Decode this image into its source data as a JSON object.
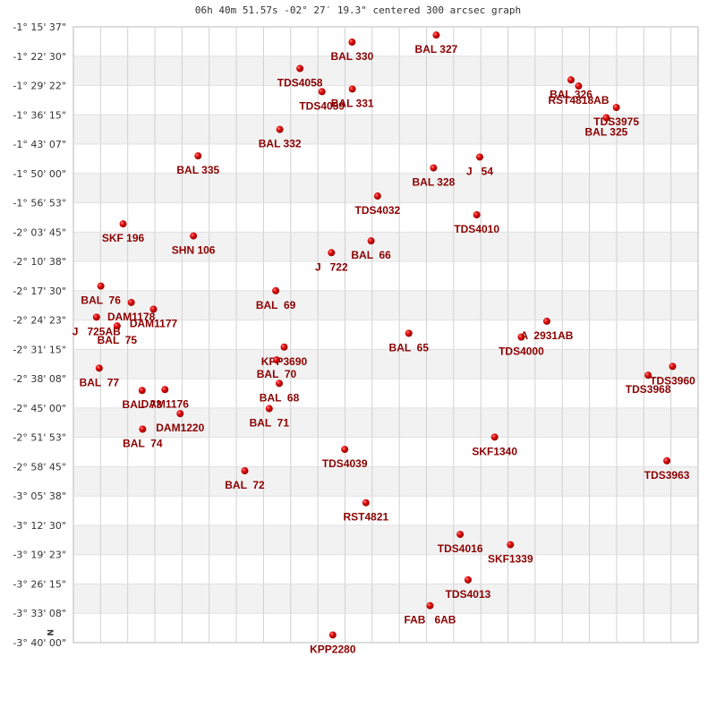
{
  "chart_data": {
    "type": "scatter",
    "title": "06h 40m 51.57s -02° 27′ 19.3\" centered 300 arcsec graph",
    "xlabel": "",
    "ylabel": "",
    "grid": true,
    "x_divisions": 23,
    "x_range": [
      0,
      23
    ],
    "y_range": [
      0,
      21
    ],
    "y_tick_labels": [
      "-1° 15' 37\"",
      "-1° 22' 30\"",
      "-1° 29' 22\"",
      "-1° 36' 15\"",
      "-1° 43' 07\"",
      "-1° 50' 00\"",
      "-1° 56' 53\"",
      "-2° 03' 45\"",
      "-2° 10' 38\"",
      "-2° 17' 30\"",
      "-2° 24' 23\"",
      "-2° 31' 15\"",
      "-2° 38' 08\"",
      "-2° 45' 00\"",
      "-2° 51' 53\"",
      "-2° 58' 45\"",
      "-3° 05' 38\"",
      "-3° 12' 30\"",
      "-3° 19' 23\"",
      "-3° 26' 15\"",
      "-3° 33' 08\"",
      "-3° 40' 00\""
    ],
    "compass_label": "N",
    "point_color": "#cc0000",
    "label_color": "#8b0000",
    "points": [
      {
        "name": "BAL 330",
        "x": 10.26,
        "y": 0.52
      },
      {
        "name": "BAL 327",
        "x": 13.36,
        "y": 0.28
      },
      {
        "name": "TDS4058",
        "x": 8.34,
        "y": 1.42
      },
      {
        "name": "TDS4059",
        "x": 9.15,
        "y": 2.21
      },
      {
        "name": "BAL 331",
        "x": 10.27,
        "y": 2.12
      },
      {
        "name": "BAL 326",
        "x": 18.32,
        "y": 1.81
      },
      {
        "name": "RST4818AB",
        "x": 18.6,
        "y": 2.02
      },
      {
        "name": "TDS3975",
        "x": 19.99,
        "y": 2.75
      },
      {
        "name": "BAL 325",
        "x": 19.62,
        "y": 3.1
      },
      {
        "name": "BAL 332",
        "x": 7.6,
        "y": 3.5
      },
      {
        "name": "BAL 335",
        "x": 4.59,
        "y": 4.4
      },
      {
        "name": "BAL 328",
        "x": 13.26,
        "y": 4.81
      },
      {
        "name": "J   54",
        "x": 14.96,
        "y": 4.44
      },
      {
        "name": "TDS4032",
        "x": 11.2,
        "y": 5.77
      },
      {
        "name": "TDS4010",
        "x": 14.85,
        "y": 6.41
      },
      {
        "name": "SKF 196",
        "x": 1.83,
        "y": 6.72
      },
      {
        "name": "SHN 106",
        "x": 4.42,
        "y": 7.13
      },
      {
        "name": "BAL  66",
        "x": 10.96,
        "y": 7.3
      },
      {
        "name": "J   722",
        "x": 9.5,
        "y": 7.7
      },
      {
        "name": "BAL  69",
        "x": 7.45,
        "y": 9.0
      },
      {
        "name": "BAL  76",
        "x": 1.01,
        "y": 8.84
      },
      {
        "name": "DAM1178",
        "x": 2.13,
        "y": 9.4
      },
      {
        "name": "DAM1177",
        "x": 2.95,
        "y": 9.63
      },
      {
        "name": "J   725AB",
        "x": 0.85,
        "y": 9.9
      },
      {
        "name": "BAL  75",
        "x": 1.61,
        "y": 10.2
      },
      {
        "name": "A  2931AB",
        "x": 17.43,
        "y": 10.04
      },
      {
        "name": "TDS4000",
        "x": 16.49,
        "y": 10.58
      },
      {
        "name": "BAL  65",
        "x": 12.35,
        "y": 10.45
      },
      {
        "name": "KPP3690",
        "x": 7.76,
        "y": 10.92
      },
      {
        "name": "BAL  70",
        "x": 7.48,
        "y": 11.36
      },
      {
        "name": "BAL  77",
        "x": 0.95,
        "y": 11.64
      },
      {
        "name": "TDS3968",
        "x": 21.16,
        "y": 11.88
      },
      {
        "name": "TDS3960",
        "x": 22.06,
        "y": 11.58
      },
      {
        "name": "BAL  68",
        "x": 7.58,
        "y": 12.16
      },
      {
        "name": "BAL  73",
        "x": 2.53,
        "y": 12.4
      },
      {
        "name": "DAM1176",
        "x": 3.37,
        "y": 12.37
      },
      {
        "name": "DAM1220",
        "x": 3.93,
        "y": 13.19
      },
      {
        "name": "BAL  71",
        "x": 7.21,
        "y": 13.02
      },
      {
        "name": "BAL  74",
        "x": 2.55,
        "y": 13.72
      },
      {
        "name": "SKF1340",
        "x": 15.51,
        "y": 13.99
      },
      {
        "name": "TDS3963",
        "x": 21.85,
        "y": 14.8
      },
      {
        "name": "TDS4039",
        "x": 9.99,
        "y": 14.41
      },
      {
        "name": "BAL  72",
        "x": 6.31,
        "y": 15.14
      },
      {
        "name": "RST4821",
        "x": 10.77,
        "y": 16.23
      },
      {
        "name": "TDS4016",
        "x": 14.24,
        "y": 17.31
      },
      {
        "name": "SKF1339",
        "x": 16.09,
        "y": 17.66
      },
      {
        "name": "TDS4013",
        "x": 14.53,
        "y": 18.86
      },
      {
        "name": "FAB   6AB",
        "x": 13.13,
        "y": 19.74
      },
      {
        "name": "KPP2280",
        "x": 9.55,
        "y": 20.74
      }
    ]
  }
}
